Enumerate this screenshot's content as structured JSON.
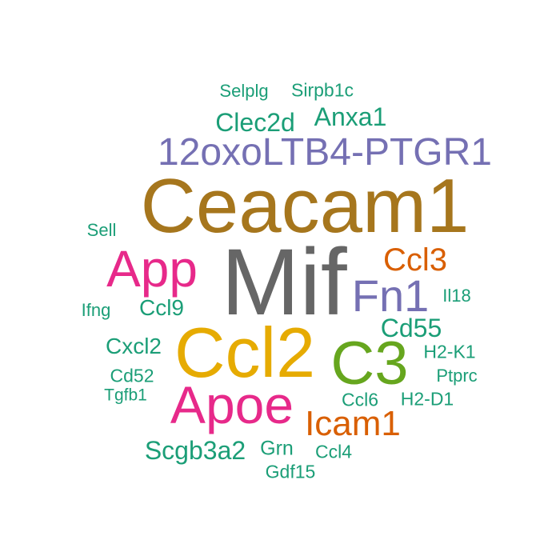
{
  "colors": {
    "background": "#ffffff",
    "teal": "#1b9e77",
    "orange": "#d95f02",
    "purple": "#7570b3",
    "magenta": "#e7298a",
    "green": "#66a61e",
    "gold": "#e6ab02",
    "brown": "#a6761d",
    "gray": "#666666"
  },
  "words": [
    {
      "text": "Selplg",
      "color": "#1b9e77"
    },
    {
      "text": "Sirpb1c",
      "color": "#1b9e77"
    },
    {
      "text": "Clec2d",
      "color": "#1b9e77"
    },
    {
      "text": "Anxa1",
      "color": "#1b9e77"
    },
    {
      "text": "12oxoLTB4-PTGR1",
      "color": "#7570b3"
    },
    {
      "text": "Ceacam1",
      "color": "#a6761d"
    },
    {
      "text": "Sell",
      "color": "#1b9e77"
    },
    {
      "text": "App",
      "color": "#e7298a"
    },
    {
      "text": "Mif",
      "color": "#666666"
    },
    {
      "text": "Ccl3",
      "color": "#d95f02"
    },
    {
      "text": "Fn1",
      "color": "#7570b3"
    },
    {
      "text": "Il18",
      "color": "#1b9e77"
    },
    {
      "text": "Ifng",
      "color": "#1b9e77"
    },
    {
      "text": "Ccl9",
      "color": "#1b9e77"
    },
    {
      "text": "Cd55",
      "color": "#1b9e77"
    },
    {
      "text": "Cxcl2",
      "color": "#1b9e77"
    },
    {
      "text": "Ccl2",
      "color": "#e6ab02"
    },
    {
      "text": "C3",
      "color": "#66a61e"
    },
    {
      "text": "H2-K1",
      "color": "#1b9e77"
    },
    {
      "text": "Cd52",
      "color": "#1b9e77"
    },
    {
      "text": "Ptprc",
      "color": "#1b9e77"
    },
    {
      "text": "Tgfb1",
      "color": "#1b9e77"
    },
    {
      "text": "Apoe",
      "color": "#e7298a"
    },
    {
      "text": "Ccl6",
      "color": "#1b9e77"
    },
    {
      "text": "H2-D1",
      "color": "#1b9e77"
    },
    {
      "text": "Icam1",
      "color": "#d95f02"
    },
    {
      "text": "Scgb3a2",
      "color": "#1b9e77"
    },
    {
      "text": "Grn",
      "color": "#1b9e77"
    },
    {
      "text": "Ccl4",
      "color": "#1b9e77"
    },
    {
      "text": "Gdf15",
      "color": "#1b9e77"
    }
  ]
}
